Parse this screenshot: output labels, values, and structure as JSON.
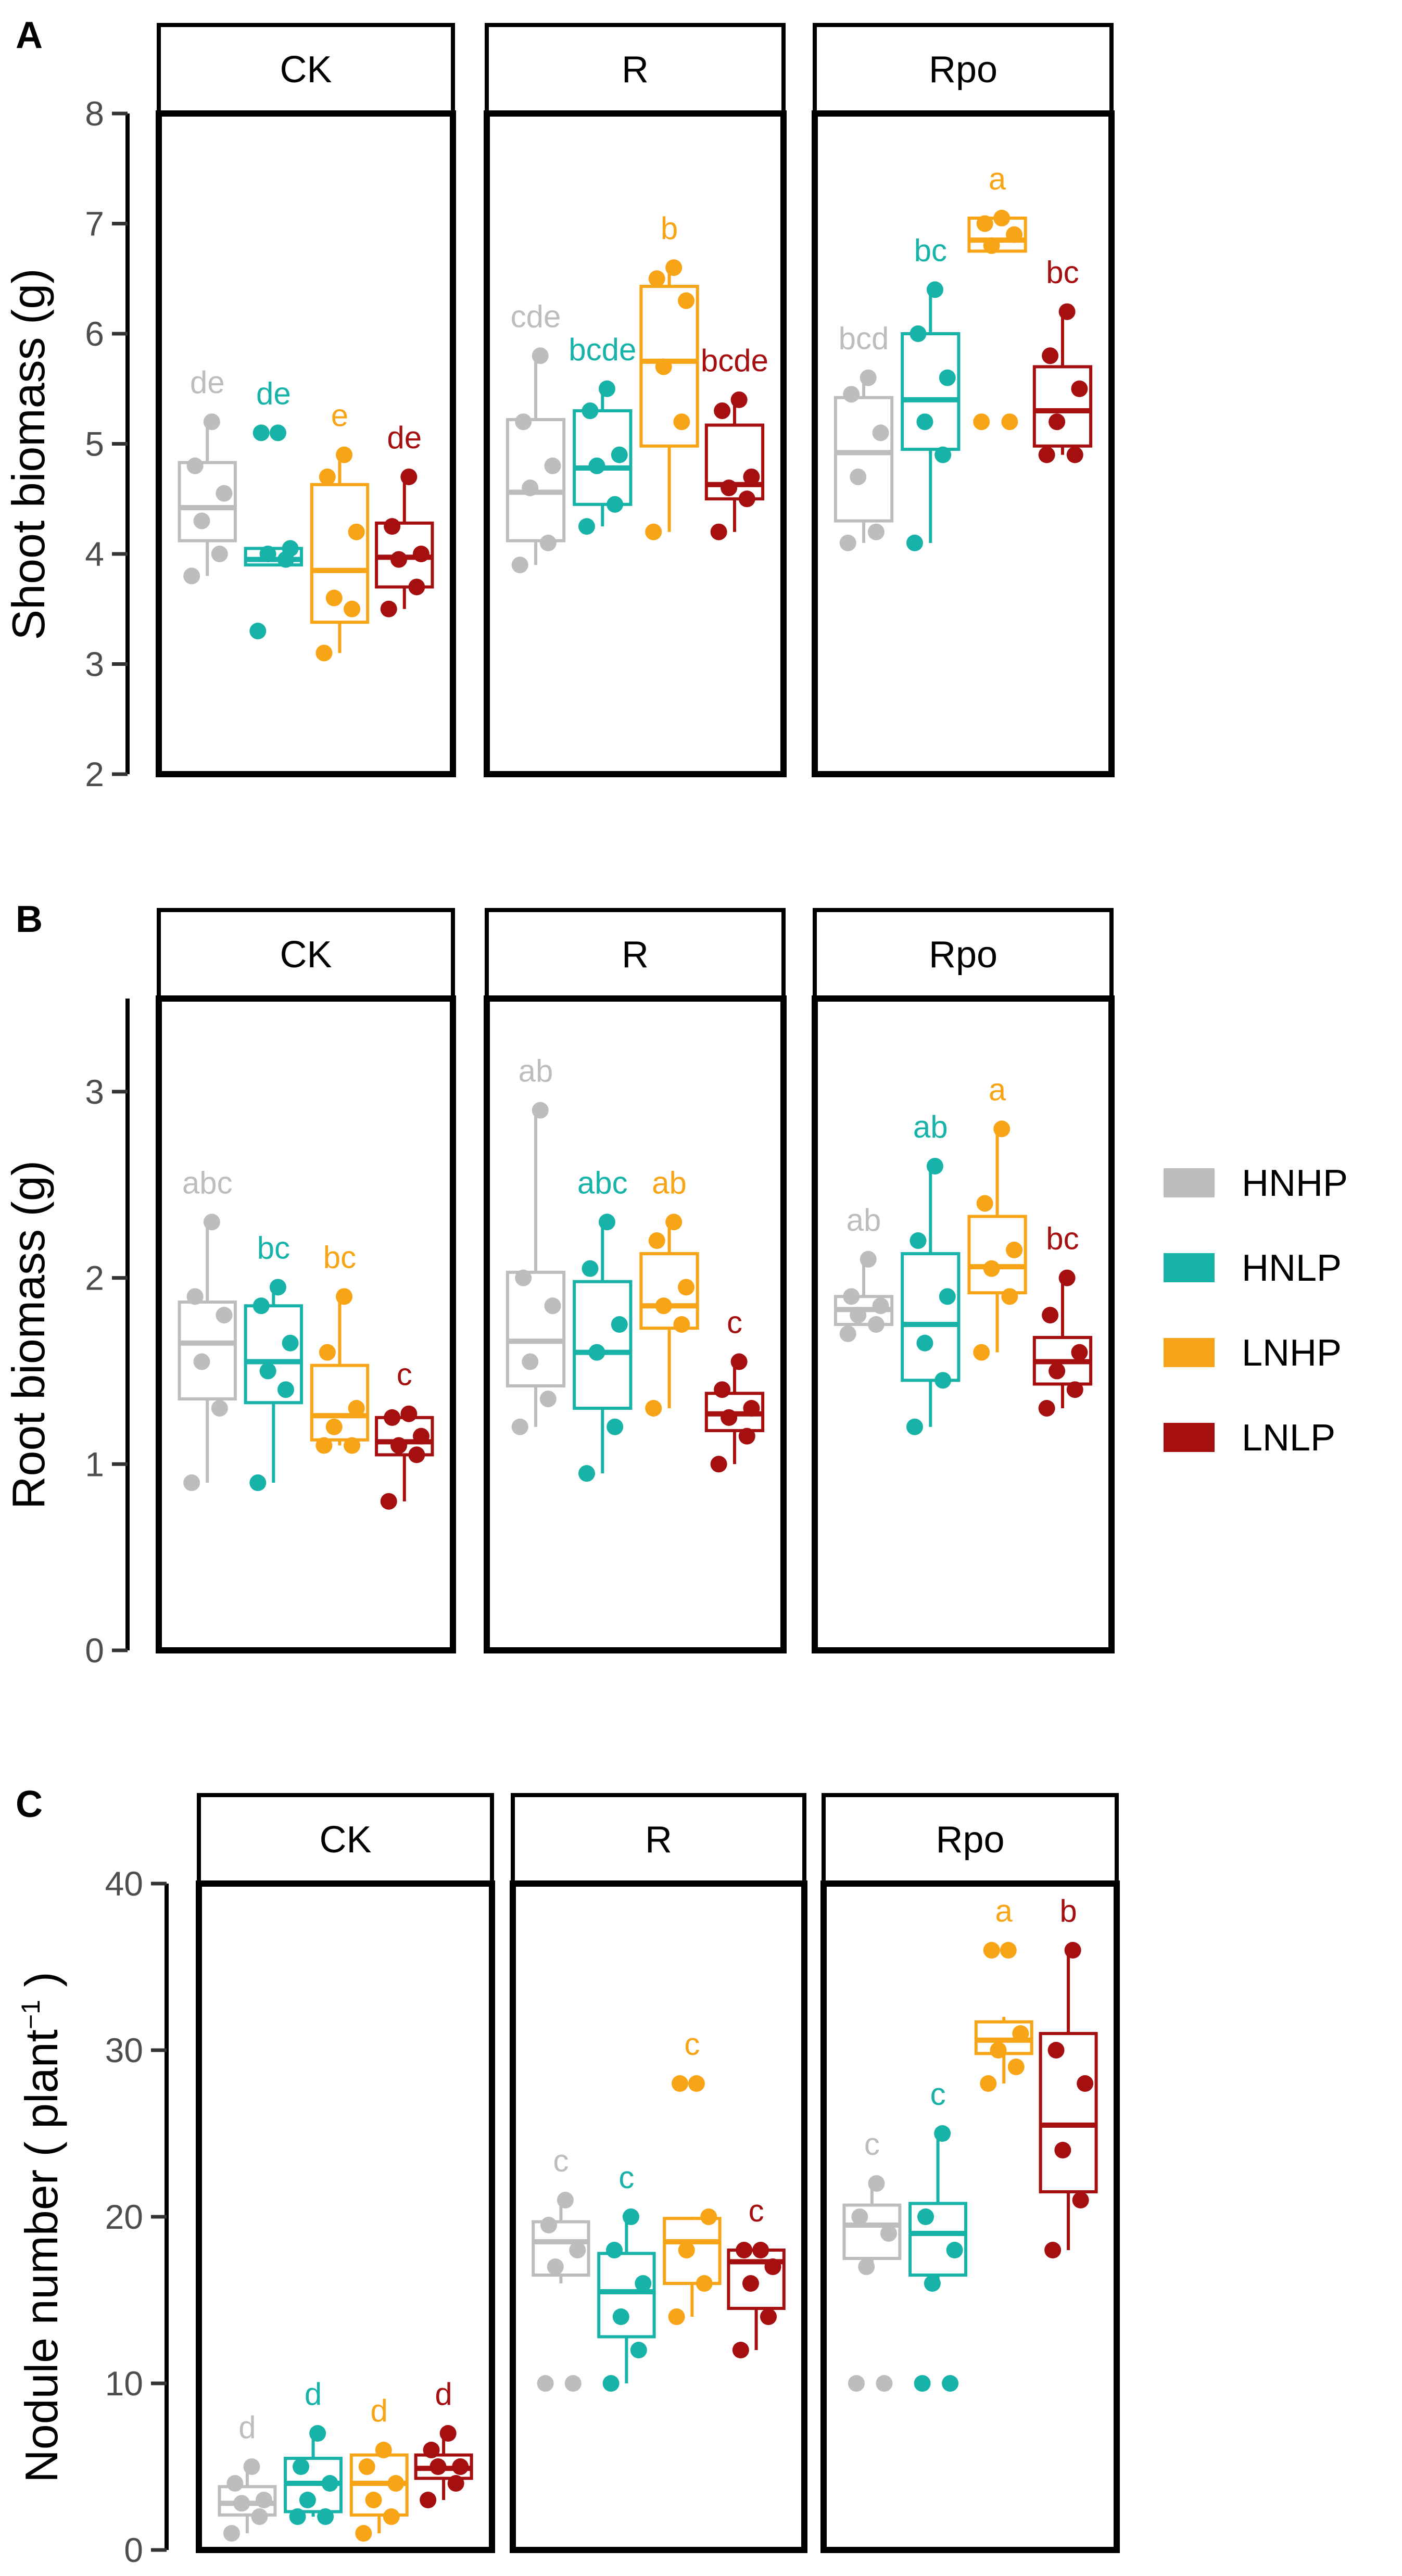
{
  "colors": {
    "HNHP": "#BDBDBD",
    "HNLP": "#17B2A8",
    "LNHP": "#F7A416",
    "LNLP": "#A50F0F"
  },
  "legend": {
    "items": [
      "HNHP",
      "HNLP",
      "LNHP",
      "LNLP"
    ],
    "placement": "right"
  },
  "chart_data": [
    {
      "panel_label": "A",
      "type": "boxplot",
      "ylabel": "Shoot biomass (g)",
      "ylim": [
        2,
        8
      ],
      "yticks": [
        2,
        3,
        4,
        5,
        6,
        7,
        8
      ],
      "facets": [
        {
          "name": "CK",
          "groups": [
            {
              "treatment": "HNHP",
              "letter": "de",
              "whisker_low": 3.8,
              "q1": 4.12,
              "median": 4.42,
              "q3": 4.83,
              "whisker_high": 5.2,
              "points": [
                3.8,
                4.0,
                4.3,
                4.55,
                4.8,
                5.2
              ]
            },
            {
              "treatment": "HNLP",
              "letter": "de",
              "whisker_low": 3.9,
              "q1": 3.9,
              "median": 3.95,
              "q3": 4.05,
              "whisker_high": 4.05,
              "points": [
                3.3,
                3.95,
                4.0,
                4.05,
                5.1,
                5.1
              ]
            },
            {
              "treatment": "LNHP",
              "letter": "e",
              "whisker_low": 3.1,
              "q1": 3.38,
              "median": 3.85,
              "q3": 4.63,
              "whisker_high": 4.9,
              "points": [
                3.1,
                3.5,
                3.6,
                4.2,
                4.7,
                4.9
              ]
            },
            {
              "treatment": "LNLP",
              "letter": "de",
              "whisker_low": 3.5,
              "q1": 3.7,
              "median": 3.97,
              "q3": 4.28,
              "whisker_high": 4.7,
              "points": [
                3.5,
                3.7,
                3.95,
                4.0,
                4.25,
                4.7
              ]
            }
          ]
        },
        {
          "name": "R",
          "groups": [
            {
              "treatment": "HNHP",
              "letter": "cde",
              "whisker_low": 3.9,
              "q1": 4.12,
              "median": 4.56,
              "q3": 5.22,
              "whisker_high": 5.8,
              "points": [
                3.9,
                4.1,
                4.6,
                4.8,
                5.2,
                5.8
              ]
            },
            {
              "treatment": "HNLP",
              "letter": "bcde",
              "whisker_low": 4.25,
              "q1": 4.45,
              "median": 4.78,
              "q3": 5.3,
              "whisker_high": 5.5,
              "points": [
                4.25,
                4.45,
                4.8,
                4.9,
                5.3,
                5.5
              ]
            },
            {
              "treatment": "LNHP",
              "letter": "b",
              "whisker_low": 4.2,
              "q1": 4.98,
              "median": 5.75,
              "q3": 6.43,
              "whisker_high": 6.6,
              "points": [
                4.2,
                5.2,
                5.7,
                6.3,
                6.5,
                6.6
              ]
            },
            {
              "treatment": "LNLP",
              "letter": "bcde",
              "whisker_low": 4.2,
              "q1": 4.5,
              "median": 4.63,
              "q3": 5.17,
              "whisker_high": 5.4,
              "points": [
                4.2,
                4.5,
                4.6,
                4.7,
                5.3,
                5.4
              ]
            }
          ]
        },
        {
          "name": "Rpo",
          "groups": [
            {
              "treatment": "HNHP",
              "letter": "bcd",
              "whisker_low": 4.1,
              "q1": 4.3,
              "median": 4.92,
              "q3": 5.42,
              "whisker_high": 5.6,
              "points": [
                4.1,
                4.2,
                4.7,
                5.1,
                5.45,
                5.6
              ]
            },
            {
              "treatment": "HNLP",
              "letter": "bc",
              "whisker_low": 4.1,
              "q1": 4.95,
              "median": 5.4,
              "q3": 6.0,
              "whisker_high": 6.4,
              "points": [
                4.1,
                4.9,
                5.2,
                5.6,
                6.0,
                6.4
              ]
            },
            {
              "treatment": "LNHP",
              "letter": "a",
              "whisker_low": 6.75,
              "q1": 6.75,
              "median": 6.85,
              "q3": 7.05,
              "whisker_high": 7.05,
              "points": [
                5.2,
                5.2,
                6.8,
                6.9,
                7.0,
                7.05
              ]
            },
            {
              "treatment": "LNLP",
              "letter": "bc",
              "whisker_low": 4.9,
              "q1": 4.98,
              "median": 5.3,
              "q3": 5.7,
              "whisker_high": 6.2,
              "points": [
                4.9,
                4.9,
                5.2,
                5.5,
                5.8,
                6.2
              ]
            }
          ]
        }
      ]
    },
    {
      "panel_label": "B",
      "type": "boxplot",
      "ylabel": "Root biomass (g)",
      "ylim": [
        0,
        3.5
      ],
      "yticks": [
        0,
        1,
        2,
        3
      ],
      "facets": [
        {
          "name": "CK",
          "groups": [
            {
              "treatment": "HNHP",
              "letter": "abc",
              "whisker_low": 0.9,
              "q1": 1.35,
              "median": 1.65,
              "q3": 1.87,
              "whisker_high": 2.3,
              "points": [
                0.9,
                1.3,
                1.55,
                1.8,
                1.9,
                2.3
              ]
            },
            {
              "treatment": "HNLP",
              "letter": "bc",
              "whisker_low": 0.9,
              "q1": 1.33,
              "median": 1.55,
              "q3": 1.85,
              "whisker_high": 1.95,
              "points": [
                0.9,
                1.4,
                1.5,
                1.65,
                1.85,
                1.95
              ]
            },
            {
              "treatment": "LNHP",
              "letter": "bc",
              "whisker_low": 1.1,
              "q1": 1.13,
              "median": 1.26,
              "q3": 1.53,
              "whisker_high": 1.9,
              "points": [
                1.1,
                1.1,
                1.2,
                1.3,
                1.6,
                1.9
              ]
            },
            {
              "treatment": "LNLP",
              "letter": "c",
              "whisker_low": 0.8,
              "q1": 1.05,
              "median": 1.12,
              "q3": 1.25,
              "whisker_high": 1.27,
              "points": [
                0.8,
                1.05,
                1.1,
                1.15,
                1.25,
                1.27
              ]
            }
          ]
        },
        {
          "name": "R",
          "groups": [
            {
              "treatment": "HNHP",
              "letter": "ab",
              "whisker_low": 1.2,
              "q1": 1.42,
              "median": 1.66,
              "q3": 2.03,
              "whisker_high": 2.9,
              "points": [
                1.2,
                1.35,
                1.55,
                1.85,
                2.0,
                2.9
              ]
            },
            {
              "treatment": "HNLP",
              "letter": "abc",
              "whisker_low": 0.95,
              "q1": 1.3,
              "median": 1.6,
              "q3": 1.98,
              "whisker_high": 2.3,
              "points": [
                0.95,
                1.2,
                1.6,
                1.75,
                2.05,
                2.3
              ]
            },
            {
              "treatment": "LNHP",
              "letter": "ab",
              "whisker_low": 1.3,
              "q1": 1.73,
              "median": 1.85,
              "q3": 2.13,
              "whisker_high": 2.3,
              "points": [
                1.3,
                1.75,
                1.85,
                1.95,
                2.2,
                2.3
              ]
            },
            {
              "treatment": "LNLP",
              "letter": "c",
              "whisker_low": 1.0,
              "q1": 1.18,
              "median": 1.27,
              "q3": 1.38,
              "whisker_high": 1.55,
              "points": [
                1.0,
                1.15,
                1.25,
                1.3,
                1.4,
                1.55
              ]
            }
          ]
        },
        {
          "name": "Rpo",
          "groups": [
            {
              "treatment": "HNHP",
              "letter": "ab",
              "whisker_low": 1.75,
              "q1": 1.75,
              "median": 1.83,
              "q3": 1.9,
              "whisker_high": 2.1,
              "points": [
                1.7,
                1.75,
                1.8,
                1.85,
                1.9,
                2.1
              ]
            },
            {
              "treatment": "HNLP",
              "letter": "ab",
              "whisker_low": 1.2,
              "q1": 1.45,
              "median": 1.75,
              "q3": 2.13,
              "whisker_high": 2.6,
              "points": [
                1.2,
                1.45,
                1.65,
                1.9,
                2.2,
                2.6
              ]
            },
            {
              "treatment": "LNHP",
              "letter": "a",
              "whisker_low": 1.6,
              "q1": 1.92,
              "median": 2.06,
              "q3": 2.33,
              "whisker_high": 2.8,
              "points": [
                1.6,
                1.9,
                2.05,
                2.15,
                2.4,
                2.8
              ]
            },
            {
              "treatment": "LNLP",
              "letter": "bc",
              "whisker_low": 1.3,
              "q1": 1.43,
              "median": 1.55,
              "q3": 1.68,
              "whisker_high": 2.0,
              "points": [
                1.3,
                1.4,
                1.5,
                1.6,
                1.8,
                2.0
              ]
            }
          ]
        }
      ]
    },
    {
      "panel_label": "C",
      "type": "boxplot",
      "ylabel_main": "Nodule number (",
      "ylabel_unit": " plant",
      "ylabel_exp": "−1",
      "ylabel_close": " )",
      "ylim": [
        0,
        40
      ],
      "yticks": [
        0,
        10,
        20,
        30,
        40
      ],
      "facets": [
        {
          "name": "CK",
          "groups": [
            {
              "treatment": "HNHP",
              "letter": "d",
              "whisker_low": 1,
              "q1": 2.1,
              "median": 2.8,
              "q3": 3.8,
              "whisker_high": 5,
              "points": [
                1,
                2,
                2.8,
                3,
                4,
                5
              ]
            },
            {
              "treatment": "HNLP",
              "letter": "d",
              "whisker_low": 2,
              "q1": 2.3,
              "median": 4.0,
              "q3": 5.5,
              "whisker_high": 7,
              "points": [
                2,
                2,
                3,
                4,
                5,
                7
              ]
            },
            {
              "treatment": "LNHP",
              "letter": "d",
              "whisker_low": 1,
              "q1": 2.1,
              "median": 4.0,
              "q3": 5.7,
              "whisker_high": 6,
              "points": [
                1,
                2,
                3,
                4,
                5,
                6
              ]
            },
            {
              "treatment": "LNLP",
              "letter": "d",
              "whisker_low": 3,
              "q1": 4.3,
              "median": 4.9,
              "q3": 5.7,
              "whisker_high": 7,
              "points": [
                3,
                4,
                5,
                5,
                6,
                7
              ]
            }
          ]
        },
        {
          "name": "R",
          "groups": [
            {
              "treatment": "HNHP",
              "letter": "c",
              "whisker_low": 16,
              "q1": 16.5,
              "median": 18.5,
              "q3": 19.7,
              "whisker_high": 21,
              "points": [
                10,
                10,
                17,
                18,
                19.5,
                21
              ]
            },
            {
              "treatment": "HNLP",
              "letter": "c",
              "whisker_low": 10,
              "q1": 12.8,
              "median": 15.5,
              "q3": 17.8,
              "whisker_high": 20,
              "points": [
                10,
                12,
                14,
                16,
                18,
                20
              ]
            },
            {
              "treatment": "LNHP",
              "letter": "c",
              "whisker_low": 14,
              "q1": 16.0,
              "median": 18.5,
              "q3": 19.9,
              "whisker_high": 20,
              "points": [
                14,
                16,
                18,
                20,
                28,
                28
              ]
            },
            {
              "treatment": "LNLP",
              "letter": "c",
              "whisker_low": 12,
              "q1": 14.5,
              "median": 17.3,
              "q3": 18.0,
              "whisker_high": 18,
              "points": [
                12,
                14,
                16,
                17,
                18,
                18
              ]
            }
          ]
        },
        {
          "name": "Rpo",
          "groups": [
            {
              "treatment": "HNHP",
              "letter": "c",
              "whisker_low": 17,
              "q1": 17.5,
              "median": 19.5,
              "q3": 20.7,
              "whisker_high": 22,
              "points": [
                10,
                10,
                17,
                19,
                20,
                22
              ]
            },
            {
              "treatment": "HNLP",
              "letter": "c",
              "whisker_low": 16,
              "q1": 16.5,
              "median": 19.0,
              "q3": 20.8,
              "whisker_high": 25,
              "points": [
                10,
                10,
                16,
                18,
                20,
                25
              ]
            },
            {
              "treatment": "LNHP",
              "letter": "a",
              "whisker_low": 28,
              "q1": 29.8,
              "median": 30.6,
              "q3": 31.7,
              "whisker_high": 32,
              "points": [
                28,
                29,
                30,
                31,
                36,
                36
              ]
            },
            {
              "treatment": "LNLP",
              "letter": "b",
              "whisker_low": 18,
              "q1": 21.5,
              "median": 25.5,
              "q3": 31.0,
              "whisker_high": 36,
              "points": [
                18,
                21,
                24,
                28,
                30,
                36
              ]
            }
          ]
        }
      ]
    }
  ]
}
